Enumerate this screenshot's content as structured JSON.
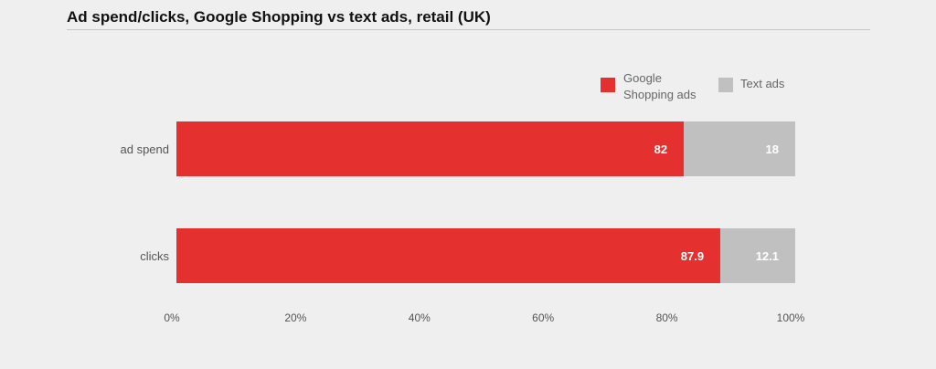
{
  "colors": {
    "google_shopping": "#e53030",
    "text_ads": "#c0c0c0"
  },
  "chart_data": {
    "type": "bar",
    "orientation": "horizontal",
    "stacked": true,
    "title": "Ad spend/clicks, Google Shopping vs text ads, retail (UK)",
    "categories": [
      "ad spend",
      "clicks"
    ],
    "series": [
      {
        "name": "Google Shopping ads",
        "values": [
          82,
          87.9
        ],
        "color": "#e53030"
      },
      {
        "name": "Text ads",
        "values": [
          18,
          12.1
        ],
        "color": "#c0c0c0"
      }
    ],
    "xlim": [
      0,
      100
    ],
    "x_ticks": [
      "0%",
      "20%",
      "40%",
      "60%",
      "80%",
      "100%"
    ],
    "grid": false,
    "legend_position": "top-right"
  }
}
